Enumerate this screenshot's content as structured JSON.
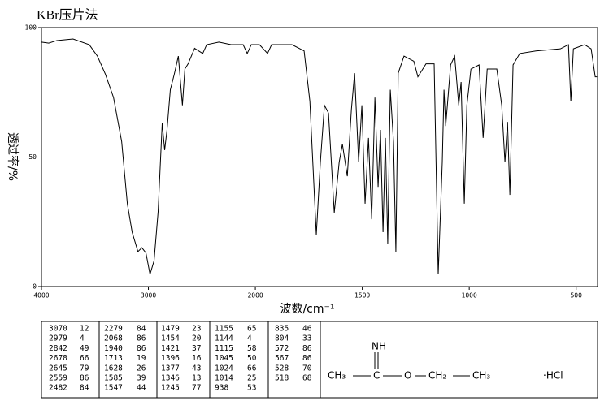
{
  "chart_data": {
    "type": "line",
    "title": "KBr压片法",
    "xlabel": "波数/cm⁻¹",
    "ylabel": "透过率/%",
    "x": [
      4000,
      3932,
      3856,
      3705,
      3553,
      3477,
      3402,
      3326,
      3250,
      3197,
      3152,
      3098,
      3061,
      3023,
      2985,
      2947,
      2909,
      2871,
      2848,
      2826,
      2795,
      2758,
      2720,
      2682,
      2659,
      2629,
      2568,
      2492,
      2455,
      2341,
      2227,
      2114,
      2076,
      2038,
      1981,
      1943,
      1924,
      1829,
      1772,
      1745,
      1715,
      1696,
      1677,
      1658,
      1631,
      1608,
      1593,
      1570,
      1551,
      1536,
      1517,
      1502,
      1487,
      1471,
      1456,
      1441,
      1426,
      1415,
      1403,
      1392,
      1381,
      1369,
      1354,
      1343,
      1332,
      1305,
      1259,
      1240,
      1202,
      1164,
      1145,
      1126,
      1118,
      1110,
      1087,
      1068,
      1049,
      1038,
      1023,
      1011,
      992,
      954,
      935,
      916,
      871,
      848,
      833,
      821,
      810,
      795,
      764,
      688,
      574,
      536,
      525,
      513,
      460,
      430,
      411,
      403
    ],
    "series": [
      {
        "color": "#000000",
        "values": [
          94.4,
          94,
          95,
          95.6,
          93.4,
          89,
          82,
          73,
          56,
          32,
          21,
          13.5,
          15,
          13,
          4.7,
          10,
          29,
          63,
          52.7,
          60.5,
          76,
          82,
          89,
          70,
          84,
          86,
          92,
          90,
          93.4,
          94.4,
          93.4,
          93.4,
          90,
          93.4,
          93.4,
          90,
          93.4,
          93.4,
          91,
          71.5,
          20,
          48,
          70,
          67,
          28.5,
          48,
          55,
          42.6,
          68.3,
          82.4,
          48,
          70,
          32,
          57.4,
          26,
          73,
          38.5,
          60.5,
          21,
          57.4,
          16.6,
          76,
          55.8,
          13.5,
          82.4,
          89,
          87,
          81,
          86,
          86,
          4.7,
          48,
          76,
          62,
          85.6,
          89,
          70,
          79,
          32,
          70,
          84,
          85.6,
          57.4,
          84,
          84,
          70,
          48,
          63.6,
          35.4,
          85.6,
          90,
          91,
          91.8,
          93.4,
          71.5,
          91.8,
          93.4,
          91.8,
          81,
          81
        ]
      }
    ],
    "xlim": [
      4000,
      400
    ],
    "ylim": [
      0,
      100
    ],
    "xticks": [
      4000,
      3000,
      2000,
      1500,
      1000,
      500
    ],
    "yticks": [
      0,
      50,
      100
    ]
  },
  "peak_table": {
    "columns": [
      [
        [
          3070,
          12
        ],
        [
          2979,
          4
        ],
        [
          2842,
          49
        ],
        [
          2678,
          66
        ],
        [
          2645,
          79
        ],
        [
          2559,
          86
        ],
        [
          2482,
          84
        ]
      ],
      [
        [
          2279,
          84
        ],
        [
          2068,
          86
        ],
        [
          1940,
          86
        ],
        [
          1713,
          19
        ],
        [
          1628,
          26
        ],
        [
          1585,
          39
        ],
        [
          1547,
          44
        ]
      ],
      [
        [
          1479,
          23
        ],
        [
          1454,
          20
        ],
        [
          1421,
          37
        ],
        [
          1396,
          16
        ],
        [
          1377,
          43
        ],
        [
          1346,
          13
        ],
        [
          1245,
          77
        ]
      ],
      [
        [
          1155,
          65
        ],
        [
          1144,
          4
        ],
        [
          1115,
          58
        ],
        [
          1045,
          50
        ],
        [
          1024,
          66
        ],
        [
          1014,
          25
        ],
        [
          938,
          53
        ]
      ],
      [
        [
          835,
          46
        ],
        [
          804,
          33
        ],
        [
          572,
          86
        ],
        [
          567,
          86
        ],
        [
          528,
          70
        ],
        [
          518,
          68
        ]
      ]
    ]
  },
  "structure": {
    "imine": "NH",
    "methyl": "CH₃",
    "carbon": "C",
    "oxygen": "O",
    "methylene": "CH₂",
    "ethyl_methyl": "CH₃",
    "salt": "·HCl"
  }
}
